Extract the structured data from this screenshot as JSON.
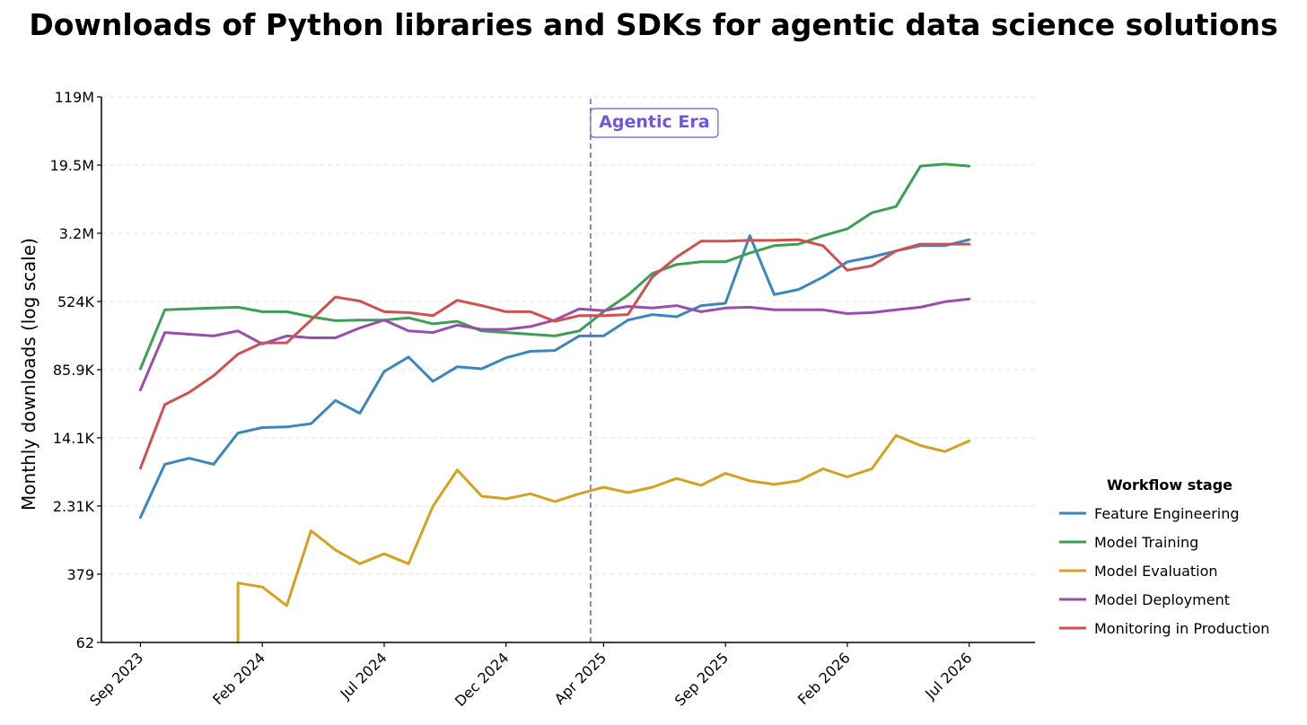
{
  "chart_data": {
    "type": "line",
    "title": "Downloads of Python libraries and SDKs for agentic data science solutions",
    "xlabel": "",
    "ylabel": "Monthly downloads (log scale)",
    "y_scale": "log",
    "ylim": [
      62,
      119000000
    ],
    "y_ticks": [
      62,
      379,
      2310,
      14100,
      85900,
      524000,
      3200000,
      19500000,
      119000000
    ],
    "y_tick_labels": [
      "62",
      "379",
      "2.31K",
      "14.1K",
      "85.9K",
      "524K",
      "3.2M",
      "19.5M",
      "119M"
    ],
    "x_range": [
      "2023-07",
      "2026-10"
    ],
    "x_ticks": [
      "2023-09",
      "2024-02",
      "2024-07",
      "2024-12",
      "2025-04",
      "2025-09",
      "2026-02",
      "2026-07"
    ],
    "x_tick_labels": [
      "Sep 2023",
      "Feb 2024",
      "Jul 2024",
      "Dec 2024",
      "Apr 2025",
      "Sep 2025",
      "Feb 2026",
      "Jul 2026"
    ],
    "x": [
      "2023-09",
      "2023-10",
      "2023-11",
      "2023-12",
      "2024-01",
      "2024-02",
      "2024-03",
      "2024-04",
      "2024-05",
      "2024-06",
      "2024-07",
      "2024-08",
      "2024-09",
      "2024-10",
      "2024-11",
      "2024-12",
      "2025-01",
      "2025-02",
      "2025-03",
      "2025-04",
      "2025-05",
      "2025-06",
      "2025-07",
      "2025-08",
      "2025-09",
      "2025-10",
      "2025-11",
      "2025-12",
      "2026-01",
      "2026-02",
      "2026-03",
      "2026-04",
      "2026-05",
      "2026-06",
      "2026-07",
      "2026-08"
    ],
    "grid": "y",
    "legend_title": "Workflow stage",
    "legend_position": "right",
    "series": [
      {
        "name": "Feature Engineering",
        "color": "#3a87c0",
        "values": [
          1700,
          7000,
          8200,
          7000,
          16000,
          18500,
          18800,
          20500,
          38000,
          27000,
          82000,
          120000,
          63000,
          93000,
          88000,
          118000,
          140000,
          143000,
          210000,
          210000,
          320000,
          370000,
          350000,
          470000,
          500000,
          3000000,
          630000,
          720000,
          1000000,
          1500000,
          1700000,
          2000000,
          2300000,
          2300000,
          2700000,
          null
        ]
      },
      {
        "name": "Model Training",
        "color": "#3c9f53",
        "values": [
          88000,
          420000,
          430000,
          440000,
          450000,
          400000,
          400000,
          350000,
          315000,
          320000,
          320000,
          340000,
          290000,
          310000,
          240000,
          230000,
          220000,
          210000,
          240000,
          400000,
          620000,
          1100000,
          1400000,
          1500000,
          1500000,
          1900000,
          2300000,
          2400000,
          3000000,
          3600000,
          5500000,
          6500000,
          19000000,
          20000000,
          19000000,
          null
        ]
      },
      {
        "name": "Model Evaluation",
        "color": "#d4a220",
        "values": [
          null,
          null,
          null,
          null,
          300,
          270,
          165,
          1200,
          720,
          500,
          650,
          500,
          2300,
          6000,
          3000,
          2800,
          3200,
          2600,
          3200,
          3800,
          3300,
          3800,
          4800,
          4000,
          5500,
          4500,
          4100,
          4500,
          6200,
          5000,
          6200,
          15000,
          11500,
          9800,
          13000,
          null
        ]
      },
      {
        "name": "Model Deployment",
        "color": "#9b4dab",
        "values": [
          50000,
          230000,
          220000,
          210000,
          240000,
          170000,
          210000,
          200000,
          200000,
          260000,
          320000,
          240000,
          230000,
          280000,
          250000,
          250000,
          270000,
          320000,
          430000,
          410000,
          460000,
          440000,
          470000,
          400000,
          440000,
          450000,
          420000,
          420000,
          420000,
          380000,
          390000,
          420000,
          450000,
          520000,
          560000,
          null
        ]
      },
      {
        "name": "Monitoring in Production",
        "color": "#d04f4f",
        "values": [
          6300,
          34000,
          47000,
          73000,
          130000,
          175000,
          175000,
          320000,
          590000,
          530000,
          400000,
          390000,
          360000,
          540000,
          470000,
          400000,
          400000,
          310000,
          360000,
          360000,
          370000,
          1000000,
          1700000,
          2600000,
          2600000,
          2650000,
          2650000,
          2700000,
          2300000,
          1200000,
          1350000,
          2000000,
          2400000,
          2400000,
          2400000,
          null
        ]
      }
    ],
    "annotations": [
      {
        "x": "2025-03-15",
        "text": "Agentic Era",
        "style": "vertical dashed line",
        "color": "#6f55e0"
      }
    ]
  }
}
